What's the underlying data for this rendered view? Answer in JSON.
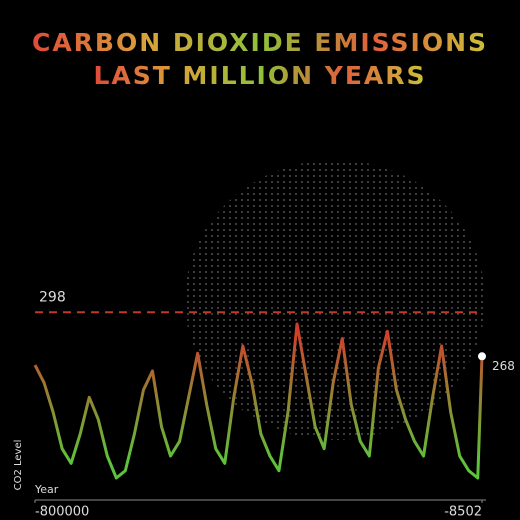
{
  "chart_data": {
    "type": "line",
    "title": "CARBON DIOXIDE EMISSIONS",
    "subtitle": "LAST MILLION YEARS",
    "x_label": "Year",
    "y_label": "CO2 Level",
    "x": [
      -800000,
      -784000,
      -768000,
      -752000,
      -736000,
      -720000,
      -704000,
      -688000,
      -672000,
      -656000,
      -640000,
      -624000,
      -608000,
      -592000,
      -576000,
      -560000,
      -544000,
      -528000,
      -512000,
      -496000,
      -480000,
      -464000,
      -448000,
      -432000,
      -416000,
      -400000,
      -384000,
      -368000,
      -352000,
      -336000,
      -320000,
      -304000,
      -288000,
      -272000,
      -256000,
      -240000,
      -224000,
      -208000,
      -192000,
      -176000,
      -160000,
      -144000,
      -128000,
      -112000,
      -96000,
      -80000,
      -64000,
      -48000,
      -32000,
      -16000,
      -8502
    ],
    "values": [
      262,
      250,
      230,
      205,
      195,
      215,
      240,
      225,
      200,
      185,
      190,
      215,
      245,
      258,
      220,
      200,
      210,
      240,
      270,
      235,
      205,
      195,
      240,
      275,
      250,
      215,
      200,
      190,
      230,
      290,
      255,
      220,
      205,
      250,
      280,
      235,
      210,
      200,
      260,
      285,
      245,
      225,
      210,
      200,
      240,
      275,
      230,
      200,
      190,
      185,
      268
    ],
    "color_high": "#d8342a",
    "color_low": "#5ec23a",
    "reference_line": 298,
    "reference_color": "#c0392b",
    "end_marker_color": "#ffffff",
    "xlim": [
      -800000,
      -8502
    ],
    "ylim": [
      170,
      320
    ],
    "xticks": [
      -800000,
      -8502
    ]
  }
}
